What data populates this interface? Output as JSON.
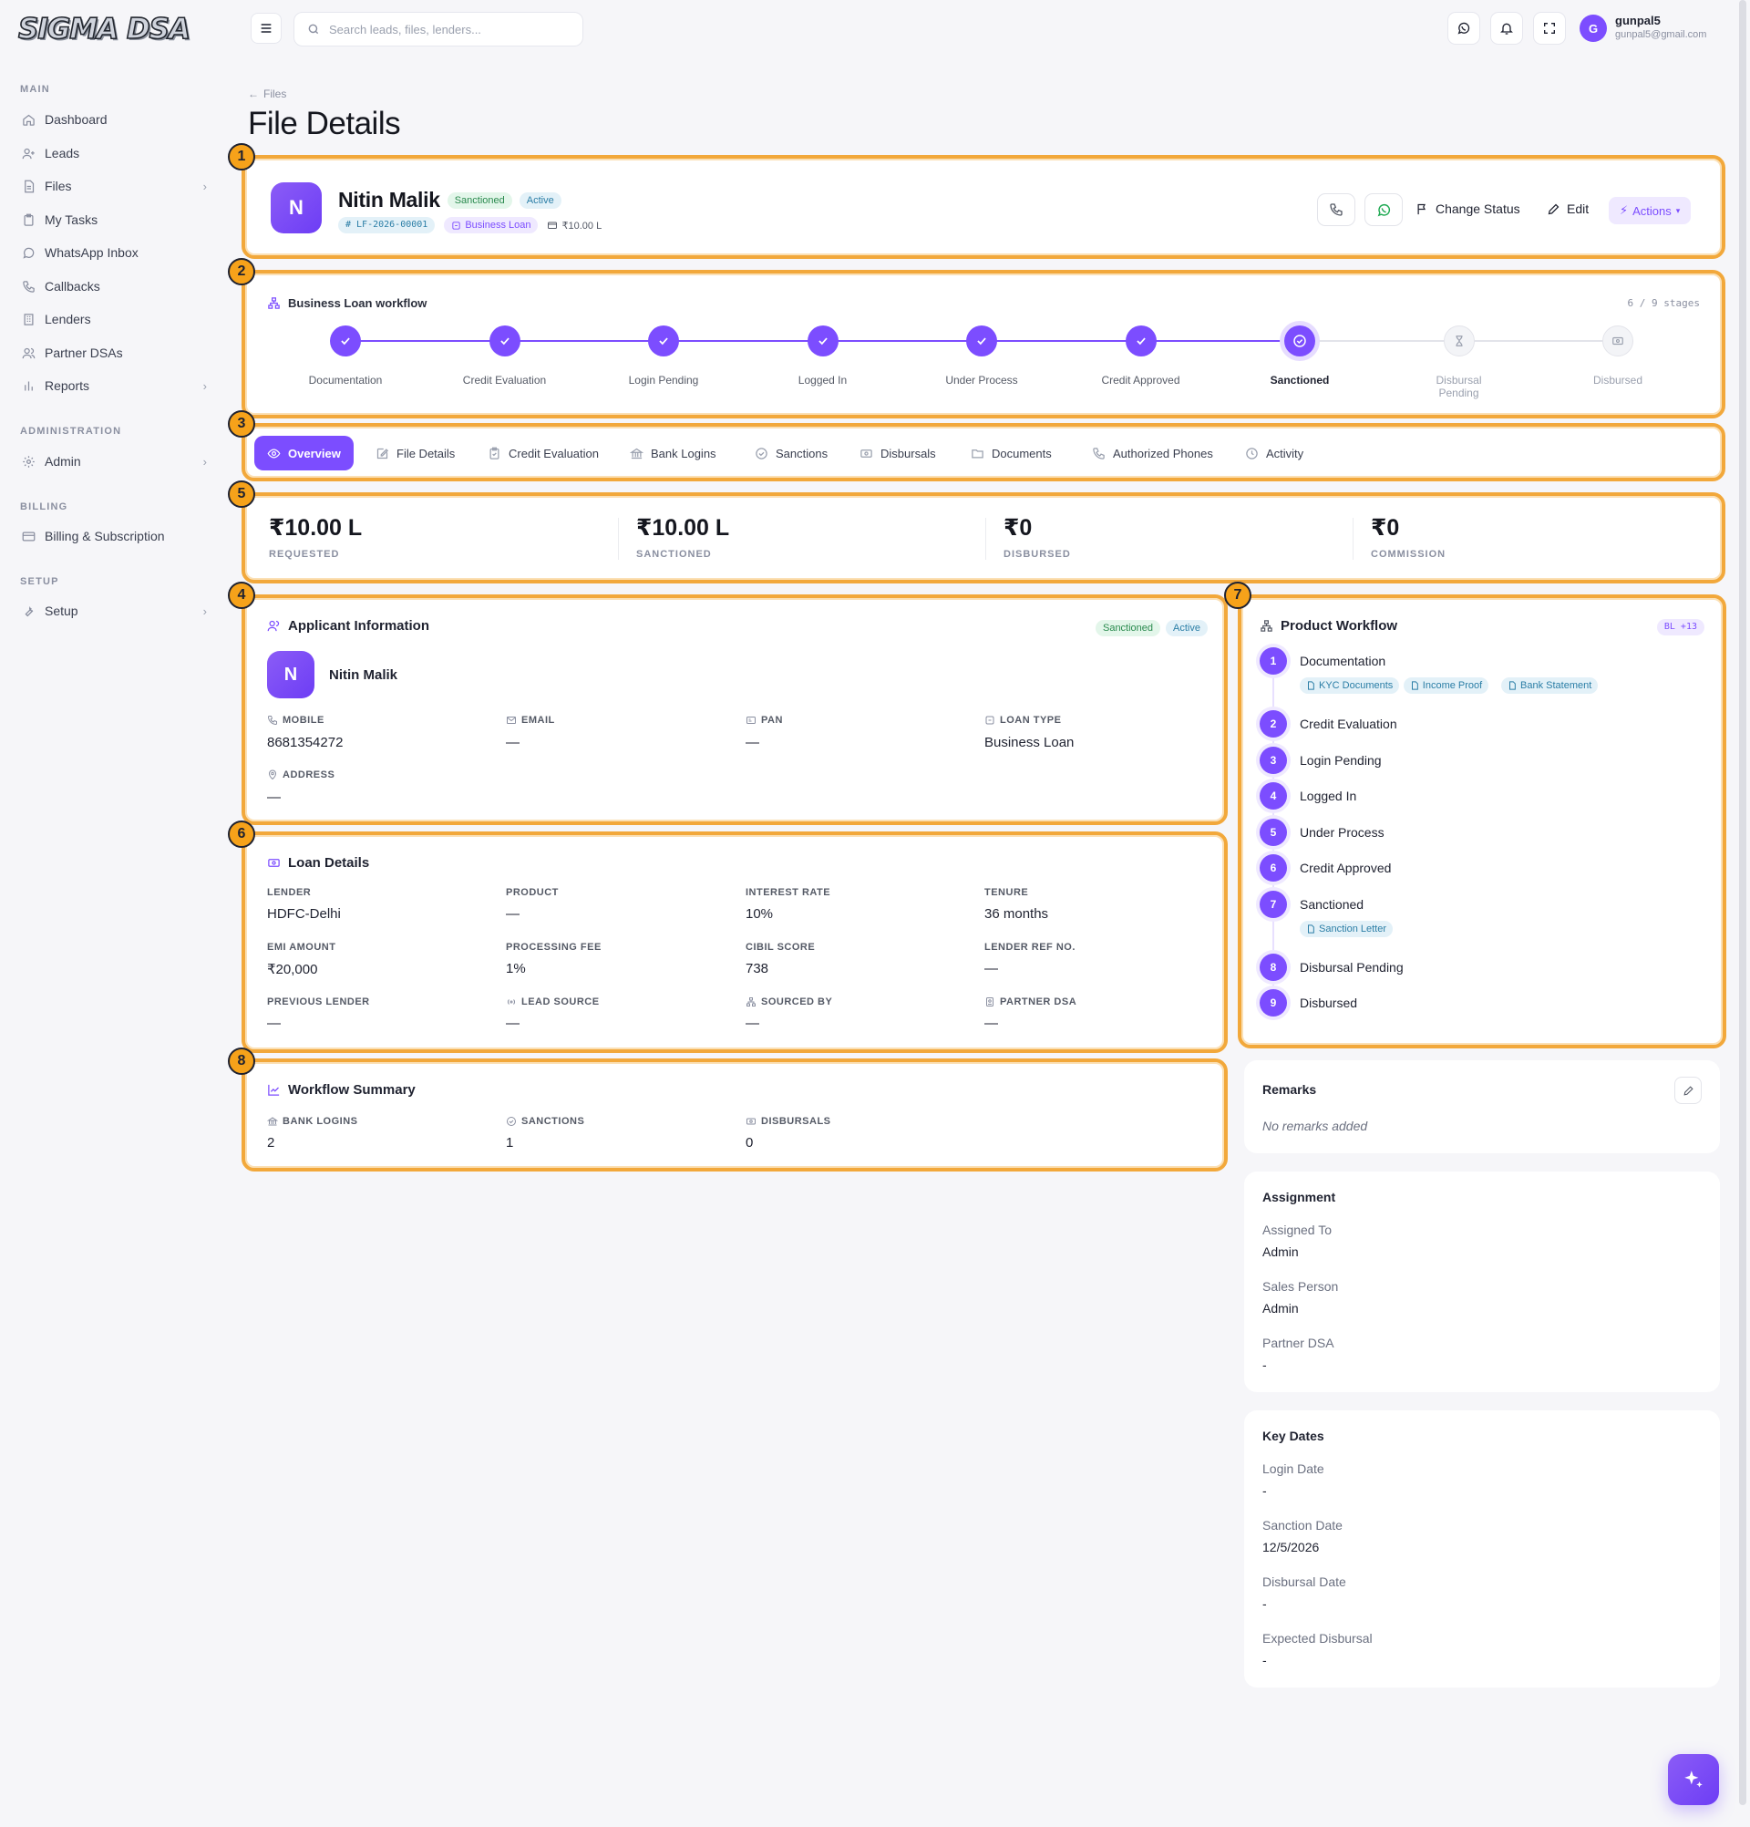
{
  "app": {
    "logo": "SIGMA DSA"
  },
  "sidebar": {
    "sections": {
      "main": "MAIN",
      "administration": "ADMINISTRATION",
      "billing": "BILLING",
      "setup": "SETUP"
    },
    "items": [
      {
        "label": "Dashboard"
      },
      {
        "label": "Leads"
      },
      {
        "label": "Files"
      },
      {
        "label": "My Tasks"
      },
      {
        "label": "WhatsApp Inbox"
      },
      {
        "label": "Callbacks"
      },
      {
        "label": "Lenders"
      },
      {
        "label": "Partner DSAs"
      },
      {
        "label": "Reports"
      },
      {
        "label": "Admin"
      },
      {
        "label": "Billing & Subscription"
      },
      {
        "label": "Setup"
      }
    ]
  },
  "topbar": {
    "search_placeholder": "Search leads, files, lenders...",
    "user": {
      "initial": "G",
      "name": "gunpal5",
      "email": "gunpal5@gmail.com"
    }
  },
  "header": {
    "breadcrumb": "Files",
    "title": "File Details"
  },
  "markers": [
    "1",
    "2",
    "3",
    "4",
    "5",
    "6",
    "7",
    "8"
  ],
  "file": {
    "initial": "N",
    "name": "Nitin Malik",
    "status": "Sanctioned",
    "state": "Active",
    "id": "# LF-2026-00001",
    "loan_type": "Business Loan",
    "amount": "₹10.00 L",
    "actions": {
      "change_status": "Change Status",
      "edit": "Edit",
      "actions": "Actions"
    }
  },
  "workflow": {
    "title": "Business Loan workflow",
    "count": "6 / 9 stages",
    "stages": [
      "Documentation",
      "Credit Evaluation",
      "Login Pending",
      "Logged In",
      "Under Process",
      "Credit Approved",
      "Sanctioned",
      "Disbursal Pending",
      "Disbursed"
    ]
  },
  "tabs": [
    "Overview",
    "File Details",
    "Credit Evaluation",
    "Bank Logins",
    "Sanctions",
    "Disbursals",
    "Documents",
    "Authorized Phones",
    "Activity"
  ],
  "stats": [
    {
      "value": "₹10.00 L",
      "label": "REQUESTED"
    },
    {
      "value": "₹10.00 L",
      "label": "SANCTIONED"
    },
    {
      "value": "₹0",
      "label": "DISBURSED"
    },
    {
      "value": "₹0",
      "label": "COMMISSION"
    }
  ],
  "applicant": {
    "title": "Applicant Information",
    "status": "Sanctioned",
    "state": "Active",
    "initial": "N",
    "name": "Nitin Malik",
    "fields": [
      {
        "label": "MOBILE",
        "value": "8681354272"
      },
      {
        "label": "EMAIL",
        "value": "—"
      },
      {
        "label": "PAN",
        "value": "—"
      },
      {
        "label": "LOAN TYPE",
        "value": "Business Loan"
      },
      {
        "label": "ADDRESS",
        "value": "—"
      }
    ]
  },
  "loan": {
    "title": "Loan Details",
    "fields": [
      {
        "label": "LENDER",
        "value": "HDFC-Delhi"
      },
      {
        "label": "PRODUCT",
        "value": "—"
      },
      {
        "label": "INTEREST RATE",
        "value": "10%"
      },
      {
        "label": "TENURE",
        "value": "36 months"
      },
      {
        "label": "EMI AMOUNT",
        "value": "₹20,000"
      },
      {
        "label": "PROCESSING FEE",
        "value": "1%"
      },
      {
        "label": "CIBIL SCORE",
        "value": "738"
      },
      {
        "label": "LENDER REF NO.",
        "value": "—"
      },
      {
        "label": "PREVIOUS LENDER",
        "value": "—"
      },
      {
        "label": "LEAD SOURCE",
        "value": "—"
      },
      {
        "label": "SOURCED BY",
        "value": "—"
      },
      {
        "label": "PARTNER DSA",
        "value": "—"
      }
    ]
  },
  "summary": {
    "title": "Workflow Summary",
    "fields": [
      {
        "label": "BANK LOGINS",
        "value": "2"
      },
      {
        "label": "SANCTIONS",
        "value": "1"
      },
      {
        "label": "DISBURSALS",
        "value": "0"
      }
    ]
  },
  "product_workflow": {
    "title": "Product Workflow",
    "badge": "BL +13",
    "steps": [
      {
        "num": "1",
        "name": "Documentation",
        "docs": [
          "KYC Documents",
          "Income Proof",
          "Bank Statement"
        ]
      },
      {
        "num": "2",
        "name": "Credit Evaluation"
      },
      {
        "num": "3",
        "name": "Login Pending"
      },
      {
        "num": "4",
        "name": "Logged In"
      },
      {
        "num": "5",
        "name": "Under Process"
      },
      {
        "num": "6",
        "name": "Credit Approved"
      },
      {
        "num": "7",
        "name": "Sanctioned",
        "docs": [
          "Sanction Letter"
        ]
      },
      {
        "num": "8",
        "name": "Disbursal Pending"
      },
      {
        "num": "9",
        "name": "Disbursed"
      }
    ]
  },
  "remarks": {
    "title": "Remarks",
    "empty": "No remarks added"
  },
  "assignment": {
    "title": "Assignment",
    "fields": [
      {
        "label": "Assigned To",
        "value": "Admin"
      },
      {
        "label": "Sales Person",
        "value": "Admin"
      },
      {
        "label": "Partner DSA",
        "value": "-"
      }
    ]
  },
  "key_dates": {
    "title": "Key Dates",
    "fields": [
      {
        "label": "Login Date",
        "value": "-"
      },
      {
        "label": "Sanction Date",
        "value": "12/5/2026"
      },
      {
        "label": "Disbursal Date",
        "value": "-"
      },
      {
        "label": "Expected Disbursal",
        "value": "-"
      }
    ]
  }
}
